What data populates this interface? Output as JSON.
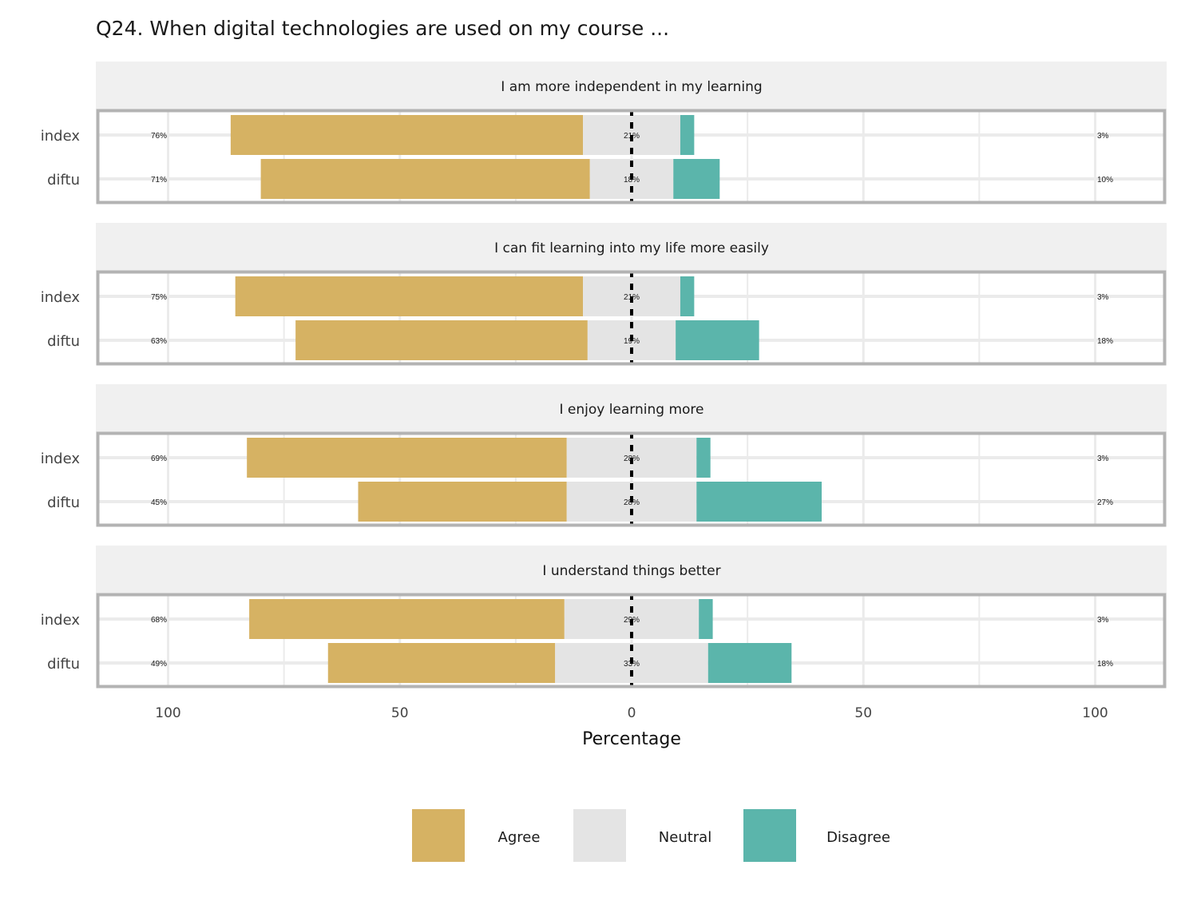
{
  "chart_data": {
    "type": "bar",
    "orientation": "horizontal",
    "subtype": "diverging-stacked",
    "title": "Q24. When digital technologies are used on my course ...",
    "xlabel": "Percentage",
    "xlim": [
      -100,
      100
    ],
    "x_ticks": [
      -100,
      -50,
      0,
      50,
      100
    ],
    "x_tick_labels": [
      "100",
      "50",
      "0",
      "50",
      "100"
    ],
    "legend_position": "bottom",
    "categories": [
      "index",
      "diftu"
    ],
    "levels": [
      {
        "name": "Agree",
        "color": "#d6b263"
      },
      {
        "name": "Neutral",
        "color": "#e4e4e4"
      },
      {
        "name": "Disagree",
        "color": "#5bb5ab"
      }
    ],
    "panels": [
      {
        "title": "I am more independent in my learning",
        "rows": [
          {
            "category": "index",
            "agree": 76,
            "neutral": 21,
            "disagree": 3,
            "agree_label": "76%",
            "neutral_label": "21%",
            "disagree_label": "3%"
          },
          {
            "category": "diftu",
            "agree": 71,
            "neutral": 18,
            "disagree": 10,
            "agree_label": "71%",
            "neutral_label": "18%",
            "disagree_label": "10%"
          }
        ]
      },
      {
        "title": "I can fit learning into my life more easily",
        "rows": [
          {
            "category": "index",
            "agree": 75,
            "neutral": 21,
            "disagree": 3,
            "agree_label": "75%",
            "neutral_label": "21%",
            "disagree_label": "3%"
          },
          {
            "category": "diftu",
            "agree": 63,
            "neutral": 19,
            "disagree": 18,
            "agree_label": "63%",
            "neutral_label": "19%",
            "disagree_label": "18%"
          }
        ]
      },
      {
        "title": "I enjoy learning more",
        "rows": [
          {
            "category": "index",
            "agree": 69,
            "neutral": 28,
            "disagree": 3,
            "agree_label": "69%",
            "neutral_label": "28%",
            "disagree_label": "3%"
          },
          {
            "category": "diftu",
            "agree": 45,
            "neutral": 28,
            "disagree": 27,
            "agree_label": "45%",
            "neutral_label": "28%",
            "disagree_label": "27%"
          }
        ]
      },
      {
        "title": "I understand things better",
        "rows": [
          {
            "category": "index",
            "agree": 68,
            "neutral": 29,
            "disagree": 3,
            "agree_label": "68%",
            "neutral_label": "29%",
            "disagree_label": "3%"
          },
          {
            "category": "diftu",
            "agree": 49,
            "neutral": 33,
            "disagree": 18,
            "agree_label": "49%",
            "neutral_label": "33%",
            "disagree_label": "18%"
          }
        ]
      }
    ]
  }
}
